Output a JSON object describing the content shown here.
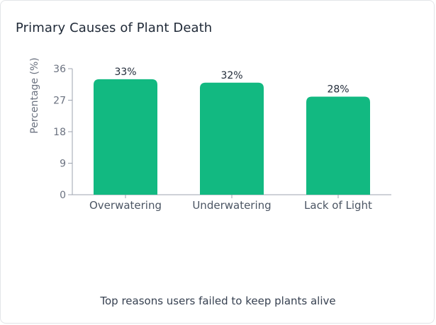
{
  "colors": {
    "bar": "#12b981",
    "axis": "#9ca3af"
  },
  "chart_data": {
    "type": "bar",
    "title": "Primary Causes of Plant Death",
    "ylabel": "Percentage (%)",
    "xlabel": "",
    "categories": [
      "Overwatering",
      "Underwatering",
      "Lack of Light"
    ],
    "values": [
      33,
      32,
      28
    ],
    "value_labels": [
      "33%",
      "32%",
      "28%"
    ],
    "ylim": [
      0,
      36
    ],
    "yticks": [
      0,
      9,
      18,
      27,
      36
    ],
    "grid": false,
    "legend": "none"
  },
  "caption": "Top reasons users failed to keep plants alive"
}
